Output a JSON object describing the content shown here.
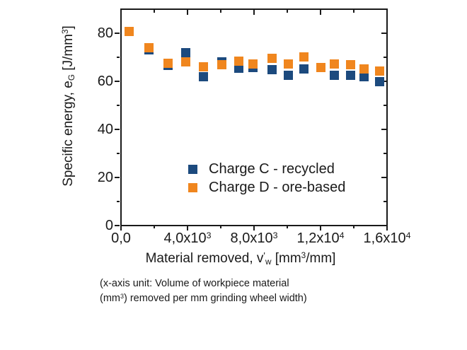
{
  "figure": {
    "background": "#ffffff",
    "axis_color": "#1a1a1a",
    "text_color": "#1a1a1a"
  },
  "chart_data": {
    "type": "scatter",
    "title": "",
    "marker": "square",
    "marker_size_px": 13,
    "grid": false,
    "legend_position": "inside-bottom-center",
    "xlabel": "Material removed, v'w [mm3/mm]",
    "ylabel": "Specific energy, eG [J/mm3]",
    "xlabel_parts": [
      {
        "t": "Material removed, v"
      },
      {
        "t": "'",
        "s": "prime"
      },
      {
        "t": "w",
        "s": "sub"
      },
      {
        "t": " [mm"
      },
      {
        "t": "3",
        "s": "sup"
      },
      {
        "t": "/mm]"
      }
    ],
    "ylabel_parts": [
      {
        "t": "Specific energy, e"
      },
      {
        "t": "G",
        "s": "sub"
      },
      {
        "t": " [J/mm"
      },
      {
        "t": "3",
        "s": "sup"
      },
      {
        "t": "]"
      }
    ],
    "xlim": [
      0,
      16000
    ],
    "ylim": [
      0,
      90
    ],
    "x_major_ticks": [
      0,
      4000,
      8000,
      12000,
      16000
    ],
    "x_major_tick_labels": [
      {
        "m": "0,0",
        "e": ""
      },
      {
        "m": "4,0x10",
        "e": "3"
      },
      {
        "m": "8,0x10",
        "e": "3"
      },
      {
        "m": "1,2x10",
        "e": "4"
      },
      {
        "m": "1,6x10",
        "e": "4"
      }
    ],
    "x_minor_ticks": [
      2000,
      6000,
      10000,
      14000
    ],
    "y_major_ticks": [
      0,
      20,
      40,
      60,
      80
    ],
    "y_major_tick_labels": [
      "0",
      "20",
      "40",
      "60",
      "80"
    ],
    "y_minor_ticks": [
      10,
      30,
      50,
      70
    ],
    "series": [
      {
        "name": "Charge C - recycled",
        "key": "charge-c",
        "color": "#1c4a7e",
        "points": [
          [
            1700,
            73.2
          ],
          [
            2850,
            66.6
          ],
          [
            3900,
            72.0
          ],
          [
            4950,
            61.8
          ],
          [
            6050,
            68.0
          ],
          [
            7100,
            65.3
          ],
          [
            7950,
            65.8
          ],
          [
            9100,
            64.8
          ],
          [
            10050,
            62.4
          ],
          [
            11000,
            65.0
          ],
          [
            12850,
            62.5
          ],
          [
            13800,
            62.6
          ],
          [
            14600,
            62.0
          ],
          [
            15550,
            59.8
          ]
        ]
      },
      {
        "name": "Charge D - ore-based",
        "key": "charge-d",
        "color": "#f0861e",
        "points": [
          [
            500,
            80.6
          ],
          [
            1700,
            74.0
          ],
          [
            2850,
            67.6
          ],
          [
            3900,
            68.1
          ],
          [
            4950,
            66.0
          ],
          [
            6050,
            66.9
          ],
          [
            7100,
            68.3
          ],
          [
            7950,
            67.1
          ],
          [
            9100,
            69.6
          ],
          [
            10050,
            67.3
          ],
          [
            11000,
            70.0
          ],
          [
            12000,
            65.7
          ],
          [
            12850,
            67.2
          ],
          [
            13800,
            67.0
          ],
          [
            14600,
            65.0
          ],
          [
            15550,
            64.3
          ]
        ]
      }
    ]
  },
  "caption": {
    "line1_parts": [
      {
        "t": "(x-axis unit: Volume of workpiece material"
      }
    ],
    "line2_parts": [
      {
        "t": "(mm"
      },
      {
        "t": "3",
        "s": "sup"
      },
      {
        "t": ") removed per mm grinding wheel width)"
      }
    ]
  }
}
